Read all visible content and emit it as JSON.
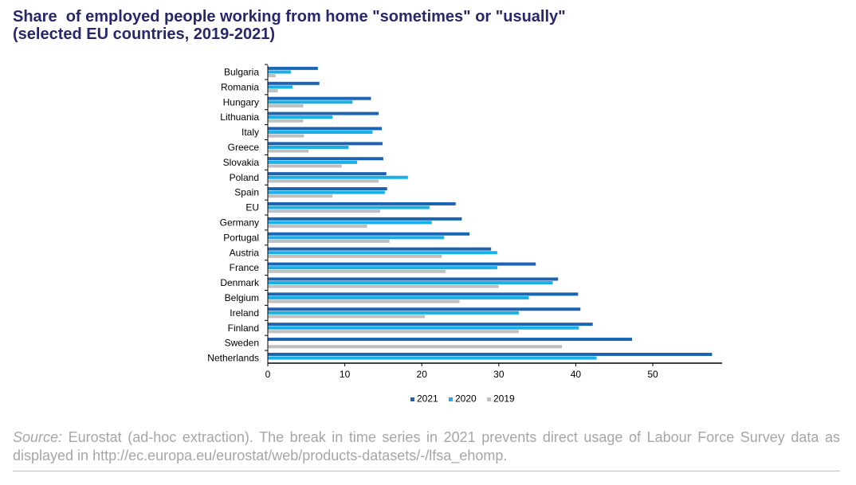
{
  "colors": {
    "title": "#27286b",
    "s2021": "#1a64b2",
    "s2020": "#19b0e8",
    "s2019": "#bfbfbf",
    "source": "#a6a6a6"
  },
  "chart_data": {
    "type": "bar",
    "orientation": "horizontal",
    "title": "Share  of employed people working from home \"sometimes\" or \"usually\"",
    "subtitle": "(selected EU countries, 2019-2021)",
    "xlim": [
      0,
      59
    ],
    "xticks": [
      0,
      10,
      20,
      30,
      40,
      50
    ],
    "legend_position": "bottom",
    "grid": false,
    "categories": [
      "Bulgaria",
      "Romania",
      "Hungary",
      "Lithuania",
      "Italy",
      "Greece",
      "Slovakia",
      "Poland",
      "Spain",
      "EU",
      "Germany",
      "Portugal",
      "Austria",
      "France",
      "Denmark",
      "Belgium",
      "Ireland",
      "Finland",
      "Sweden",
      "Netherlands"
    ],
    "series": [
      {
        "name": "2021",
        "color": "#1a64b2",
        "values": [
          6.5,
          6.7,
          13.4,
          14.4,
          14.8,
          14.9,
          15.0,
          15.4,
          15.5,
          24.4,
          25.2,
          26.2,
          29.0,
          34.8,
          37.7,
          40.3,
          40.6,
          42.2,
          47.3,
          57.7
        ]
      },
      {
        "name": "2020",
        "color": "#19b0e8",
        "values": [
          3.0,
          3.2,
          11.0,
          8.4,
          13.6,
          10.5,
          11.6,
          18.2,
          15.2,
          21.0,
          21.3,
          22.9,
          29.8,
          29.8,
          37.0,
          33.9,
          32.6,
          40.4,
          null,
          42.7
        ]
      },
      {
        "name": "2019",
        "color": "#bfbfbf",
        "values": [
          1.0,
          1.3,
          4.6,
          4.6,
          4.7,
          5.3,
          9.6,
          14.4,
          8.4,
          14.6,
          12.9,
          15.8,
          22.6,
          23.1,
          30.0,
          24.9,
          20.4,
          32.6,
          38.2,
          null
        ]
      }
    ]
  },
  "source": {
    "label": "Source:",
    "text": " Eurostat (ad-hoc extraction). The break in time series in 2021 prevents direct usage of Labour Force Survey data as displayed in http://ec.europa.eu/eurostat/web/products-datasets/-/lfsa_ehomp."
  }
}
